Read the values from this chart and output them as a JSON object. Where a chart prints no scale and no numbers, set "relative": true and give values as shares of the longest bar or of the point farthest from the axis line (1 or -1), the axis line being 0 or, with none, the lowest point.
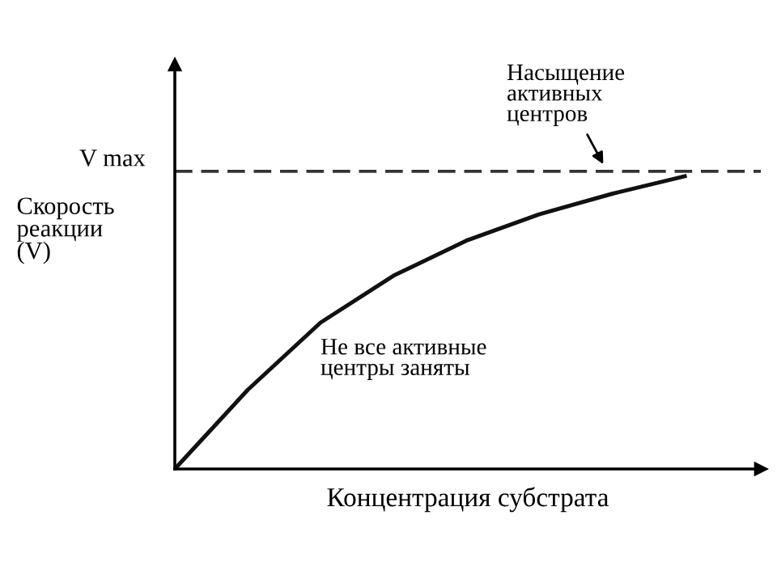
{
  "chart_data": {
    "type": "line",
    "relative": true,
    "xlabel": "Концентрация субстрата",
    "ylabel": "Скорость\nреакции\n(V)",
    "categories": [
      null,
      null,
      null,
      null,
      null,
      null,
      null,
      null
    ],
    "series": [
      {
        "color": "#111111",
        "values": [
          0,
          0.27,
          0.5,
          0.66,
          0.78,
          0.87,
          0.94,
          1.0
        ]
      }
    ],
    "ref_lines": [
      {
        "axis": "y",
        "value": 1.017,
        "label": "V max",
        "color": "#333333",
        "line_style": "dashed"
      }
    ],
    "annotations": [
      "Насыщение\nактивных\nцентров",
      "Не все активные\nцентры заняты"
    ],
    "legend": false,
    "marker": "none",
    "line_style": "solid",
    "tick_labels": false
  }
}
